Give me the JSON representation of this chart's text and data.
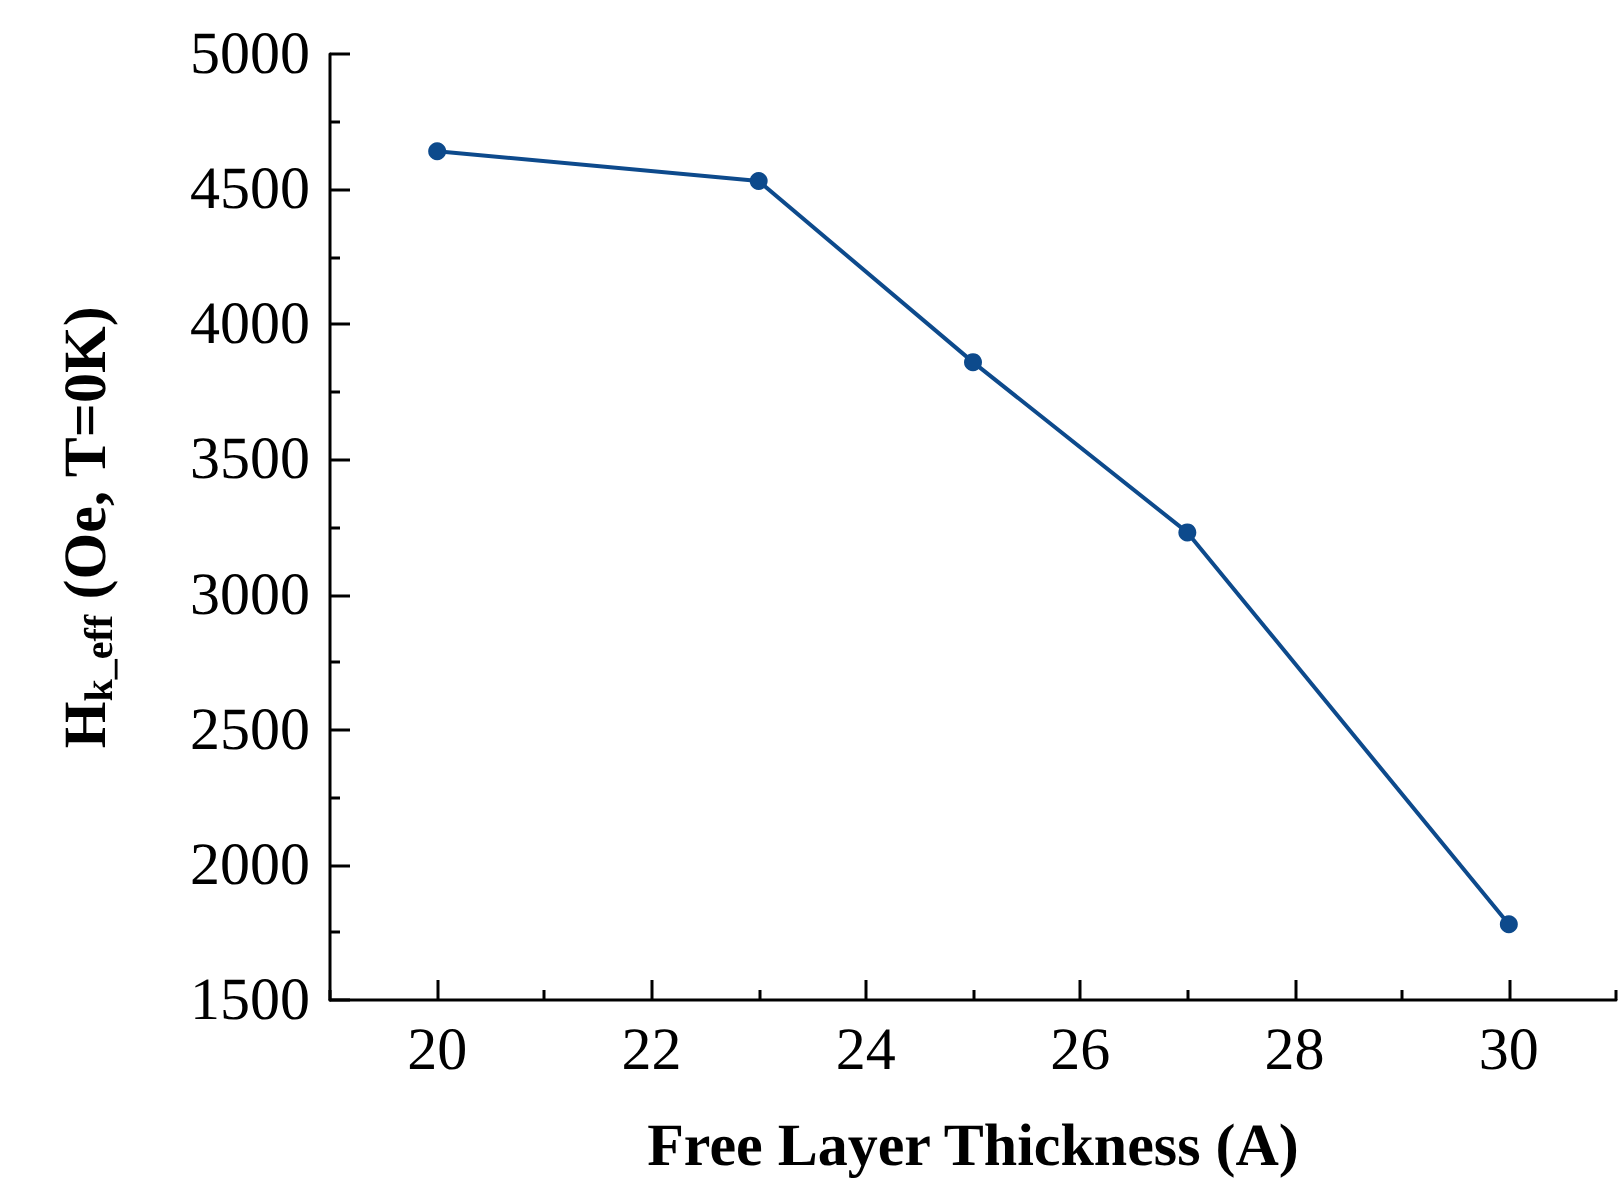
{
  "chart_data": {
    "type": "line",
    "xlabel": "Free Layer Thickness (A)",
    "ylabel": "H$_{k_eff}$ (Oe, T=0K)",
    "x": [
      20,
      23,
      25,
      27,
      30
    ],
    "series": [
      {
        "color": "#0d4a8c",
        "values": [
          4640,
          4530,
          3860,
          3230,
          1780
        ]
      }
    ],
    "xlim": [
      19,
      31
    ],
    "ylim": [
      1500,
      5000
    ],
    "xticks": [
      {
        "value": 19,
        "label": null
      },
      20,
      {
        "value": 21,
        "label": null
      },
      22,
      {
        "value": 23,
        "label": null
      },
      24,
      {
        "value": 25,
        "label": null
      },
      26,
      {
        "value": 27,
        "label": null
      },
      28,
      {
        "value": 29,
        "label": null
      },
      30,
      {
        "value": 31,
        "label": null
      }
    ],
    "yticks": [
      1500,
      {
        "value": 1750,
        "label": null
      },
      2000,
      {
        "value": 2250,
        "label": null
      },
      2500,
      {
        "value": 2750,
        "label": null
      },
      3000,
      {
        "value": 3250,
        "label": null
      },
      3500,
      {
        "value": 3750,
        "label": null
      },
      4000,
      {
        "value": 4250,
        "label": null
      },
      4500,
      {
        "value": 4750,
        "label": null
      },
      5000
    ],
    "marker": "circle",
    "line_style": "solid",
    "grid": false
  }
}
